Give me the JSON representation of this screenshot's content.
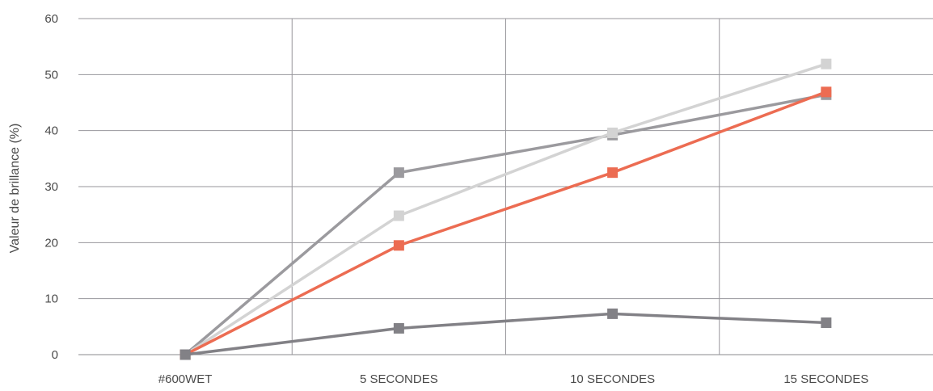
{
  "chart_data": {
    "type": "line",
    "title": "",
    "xlabel": "",
    "ylabel": "Valeur de brillance (%)",
    "categories": [
      "#600WET",
      "5 SECONDES",
      "10 SECONDES",
      "15 SECONDES"
    ],
    "ylim": [
      0,
      60
    ],
    "yticks": [
      "0",
      "10",
      "20",
      "30",
      "40",
      "50",
      "60"
    ],
    "grid": true,
    "legend": "none",
    "series": [
      {
        "color": "#9b9a9e",
        "values": [
          0,
          32.5,
          39.2,
          46.4
        ]
      },
      {
        "color": "#d3d3d3",
        "values": [
          0,
          24.8,
          39.6,
          51.9
        ]
      },
      {
        "color": "#ec6c52",
        "values": [
          0,
          19.5,
          32.5,
          46.9
        ]
      },
      {
        "color": "#828186",
        "values": [
          0,
          4.7,
          7.3,
          5.7
        ]
      }
    ]
  }
}
